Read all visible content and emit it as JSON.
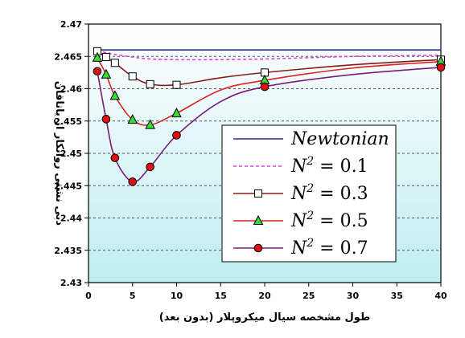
{
  "chart_data": {
    "type": "line",
    "xlabel": "طول مشخصه سیال میکروپلار (بدون بعد)",
    "ylabel": "دبی نشتی روانکار از یاتاقان",
    "xlim": [
      0,
      40
    ],
    "ylim": [
      2.43,
      2.47
    ],
    "xticks": [
      "0",
      "5",
      "10",
      "15",
      "20",
      "25",
      "30",
      "35",
      "40"
    ],
    "yticks": [
      "2.43",
      "2.435",
      "2.44",
      "2.445",
      "2.45",
      "2.455",
      "2.46",
      "2.465",
      "2.47"
    ],
    "grid": "horizontal dashed",
    "legend_position": "lower-right",
    "series": [
      {
        "name": "Newtonian",
        "color": "#2b2b8f",
        "line": "solid",
        "marker": "none",
        "x": [
          1,
          40
        ],
        "y": [
          2.466,
          2.466
        ]
      },
      {
        "name": "N^2 = 0.1",
        "color": "#e040e0",
        "line": "dashed",
        "marker": "none",
        "x": [
          1,
          2,
          3,
          5,
          7,
          10,
          15,
          20,
          25,
          30,
          35,
          40
        ],
        "y": [
          2.4658,
          2.4656,
          2.4653,
          2.4649,
          2.4646,
          2.4645,
          2.4645,
          2.4646,
          2.4648,
          2.465,
          2.4651,
          2.4652
        ]
      },
      {
        "name": "N^2 = 0.3",
        "color": "#8b1a1a",
        "line": "solid",
        "marker": "square",
        "marker_fill": "#ffffff",
        "marker_x": [
          1,
          2,
          3,
          5,
          7,
          10,
          20,
          40
        ],
        "x": [
          1,
          2,
          3,
          5,
          7,
          10,
          15,
          20,
          30,
          40
        ],
        "y": [
          2.4658,
          2.4649,
          2.464,
          2.4619,
          2.4607,
          2.4606,
          2.4617,
          2.4625,
          2.4637,
          2.4645
        ]
      },
      {
        "name": "N^2 = 0.5",
        "color": "#e02020",
        "line": "solid",
        "marker": "triangle",
        "marker_fill": "#33dd33",
        "marker_x": [
          1,
          2,
          3,
          5,
          7,
          10,
          20,
          40
        ],
        "x": [
          1,
          2,
          3,
          5,
          7,
          10,
          15,
          20,
          30,
          40
        ],
        "y": [
          2.4648,
          2.4622,
          2.4589,
          2.4552,
          2.4544,
          2.4562,
          2.4598,
          2.4613,
          2.4632,
          2.4642
        ]
      },
      {
        "name": "N^2 = 0.7",
        "color": "#7a1a7a",
        "line": "solid",
        "marker": "circle",
        "marker_fill": "#dd1111",
        "marker_x": [
          1,
          2,
          3,
          5,
          7,
          10,
          20,
          40
        ],
        "x": [
          1,
          2,
          3,
          5,
          7,
          10,
          15,
          20,
          30,
          40
        ],
        "y": [
          2.4627,
          2.4553,
          2.4493,
          2.4456,
          2.4479,
          2.4528,
          2.458,
          2.4603,
          2.4622,
          2.4633
        ]
      }
    ],
    "legend_labels": [
      {
        "base": "Newtonian",
        "sup": "",
        "rest": ""
      },
      {
        "base": "N",
        "sup": "2",
        "rest": " = 0.1"
      },
      {
        "base": "N",
        "sup": "2",
        "rest": " = 0.3"
      },
      {
        "base": "N",
        "sup": "2",
        "rest": " = 0.5"
      },
      {
        "base": "N",
        "sup": "2",
        "rest": " = 0.7"
      }
    ],
    "colors": {
      "plot_top": "#ffffff",
      "plot_bottom": "#bfeef0",
      "grid": "#555555",
      "axis": "#000000"
    }
  }
}
